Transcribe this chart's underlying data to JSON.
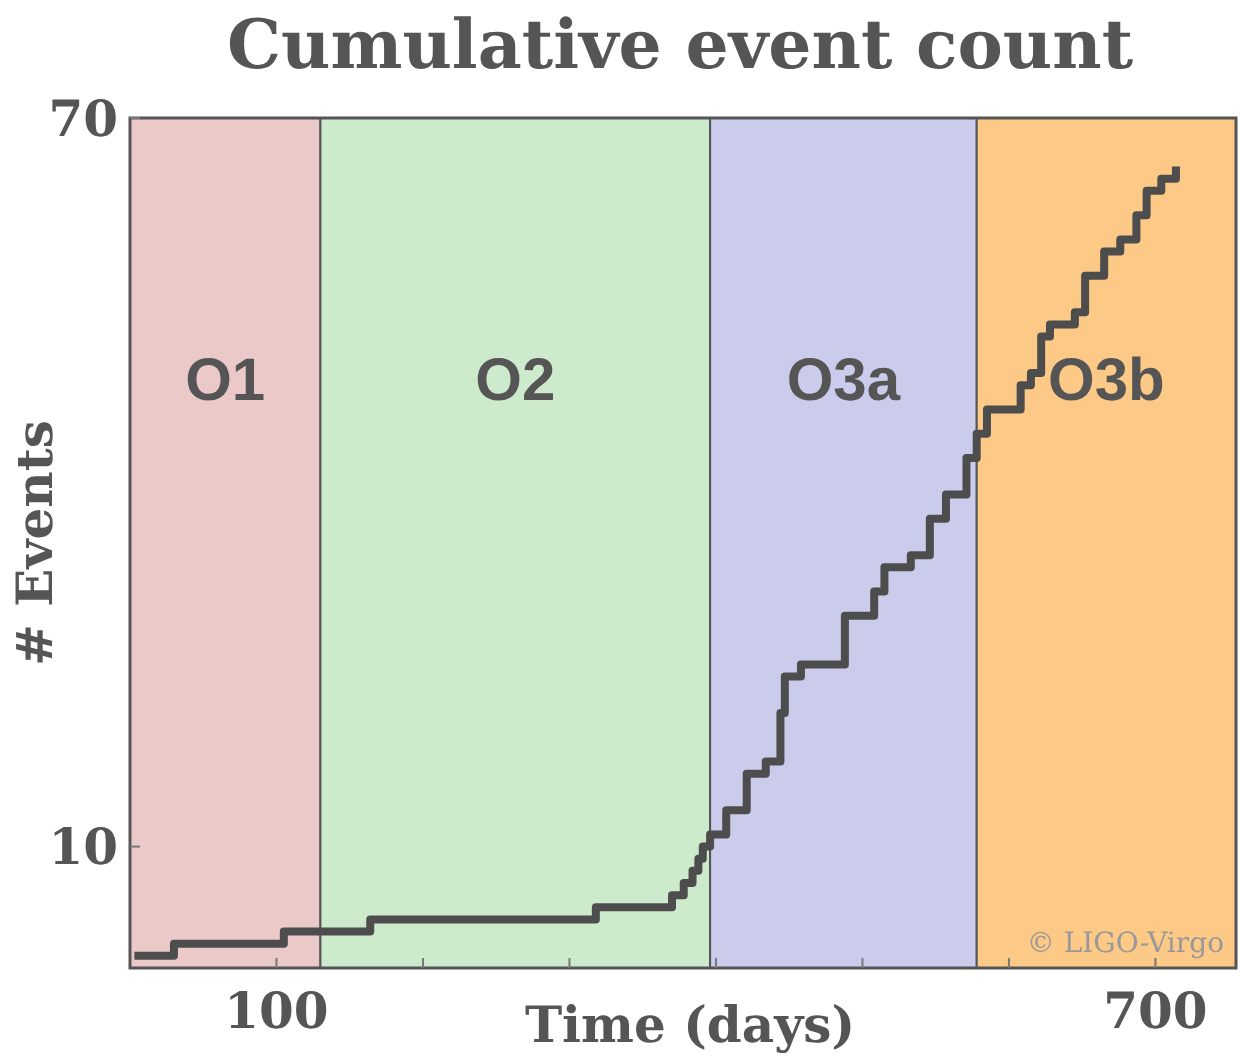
{
  "chart_data": {
    "type": "step",
    "title": "Cumulative event count",
    "xlabel": "Time (days)",
    "ylabel": "# Events",
    "xlim": [
      0,
      755
    ],
    "ylim": [
      0,
      70
    ],
    "xticks": [
      {
        "value": 100,
        "label": "100"
      },
      {
        "value": 200,
        "label": null
      },
      {
        "value": 300,
        "label": null
      },
      {
        "value": 400,
        "label": null
      },
      {
        "value": 500,
        "label": null
      },
      {
        "value": 600,
        "label": null
      },
      {
        "value": 700,
        "label": "700"
      }
    ],
    "yticks": [
      10,
      70
    ],
    "series": [
      {
        "color": "#4d4d4d",
        "x": [
          3,
          30,
          105,
          164,
          318,
          370,
          378,
          384,
          388,
          391,
          396,
          407,
          421,
          434,
          444,
          447,
          458,
          488,
          508,
          515,
          533,
          546,
          557,
          571,
          578,
          585,
          608,
          615,
          622,
          628,
          645,
          652,
          665,
          676,
          687,
          694,
          704,
          714
        ],
        "values": [
          1,
          2,
          3,
          4,
          5,
          6,
          7,
          8,
          9,
          10,
          11,
          13,
          16,
          17,
          21,
          24,
          25,
          29,
          31,
          33,
          34,
          37,
          39,
          42,
          44,
          46,
          48,
          49,
          52,
          53,
          54,
          57,
          59,
          60,
          62,
          64,
          65,
          66
        ]
      }
    ],
    "bands": [
      {
        "axis": "x",
        "from": 0,
        "to": 130,
        "label": "O1",
        "color": "#ecc9c9"
      },
      {
        "axis": "x",
        "from": 130,
        "to": 396,
        "label": "O2",
        "color": "#cdebcc"
      },
      {
        "axis": "x",
        "from": 396,
        "to": 578,
        "label": "O3a",
        "color": "#cbcbeb"
      },
      {
        "axis": "x",
        "from": 578,
        "to": 755,
        "label": "O3b",
        "color": "#fcc986"
      }
    ],
    "annotations": [
      "© LIGO-Virgo"
    ]
  }
}
